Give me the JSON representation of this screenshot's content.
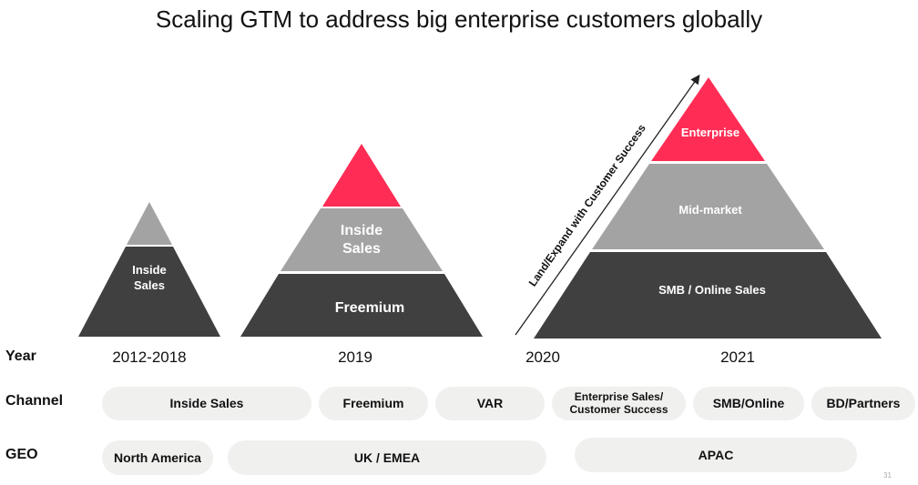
{
  "title": "Scaling GTM to address big enterprise customers globally",
  "row_labels": {
    "year": "Year",
    "channel": "Channel",
    "geo": "GEO"
  },
  "pyramids": {
    "p1": {
      "middle": "Inside Sales"
    },
    "p2": {
      "middle": "Inside Sales",
      "bottom": "Freemium"
    },
    "p3": {
      "top": "Enterprise",
      "middle": "Mid-market",
      "bottom": "SMB / Online Sales"
    }
  },
  "arrow_label": "Land/Expand with Customer Success",
  "years": [
    "2012-2018",
    "2019",
    "2020",
    "2021"
  ],
  "channels": {
    "inside_sales": "Inside Sales",
    "freemium": "Freemium",
    "var": "VAR",
    "enterprise_sales": "Enterprise Sales/ Customer Success",
    "smb_online": "SMB/Online",
    "bd_partners": "BD/Partners"
  },
  "geo": {
    "north_america": "North America",
    "uk_emea": "UK / EMEA",
    "apac": "APAC"
  },
  "page_number": "31",
  "colors": {
    "dark": "#404040",
    "gray": "#a3a3a3",
    "accent": "#ff2d55",
    "pill": "#f0f0ef"
  }
}
